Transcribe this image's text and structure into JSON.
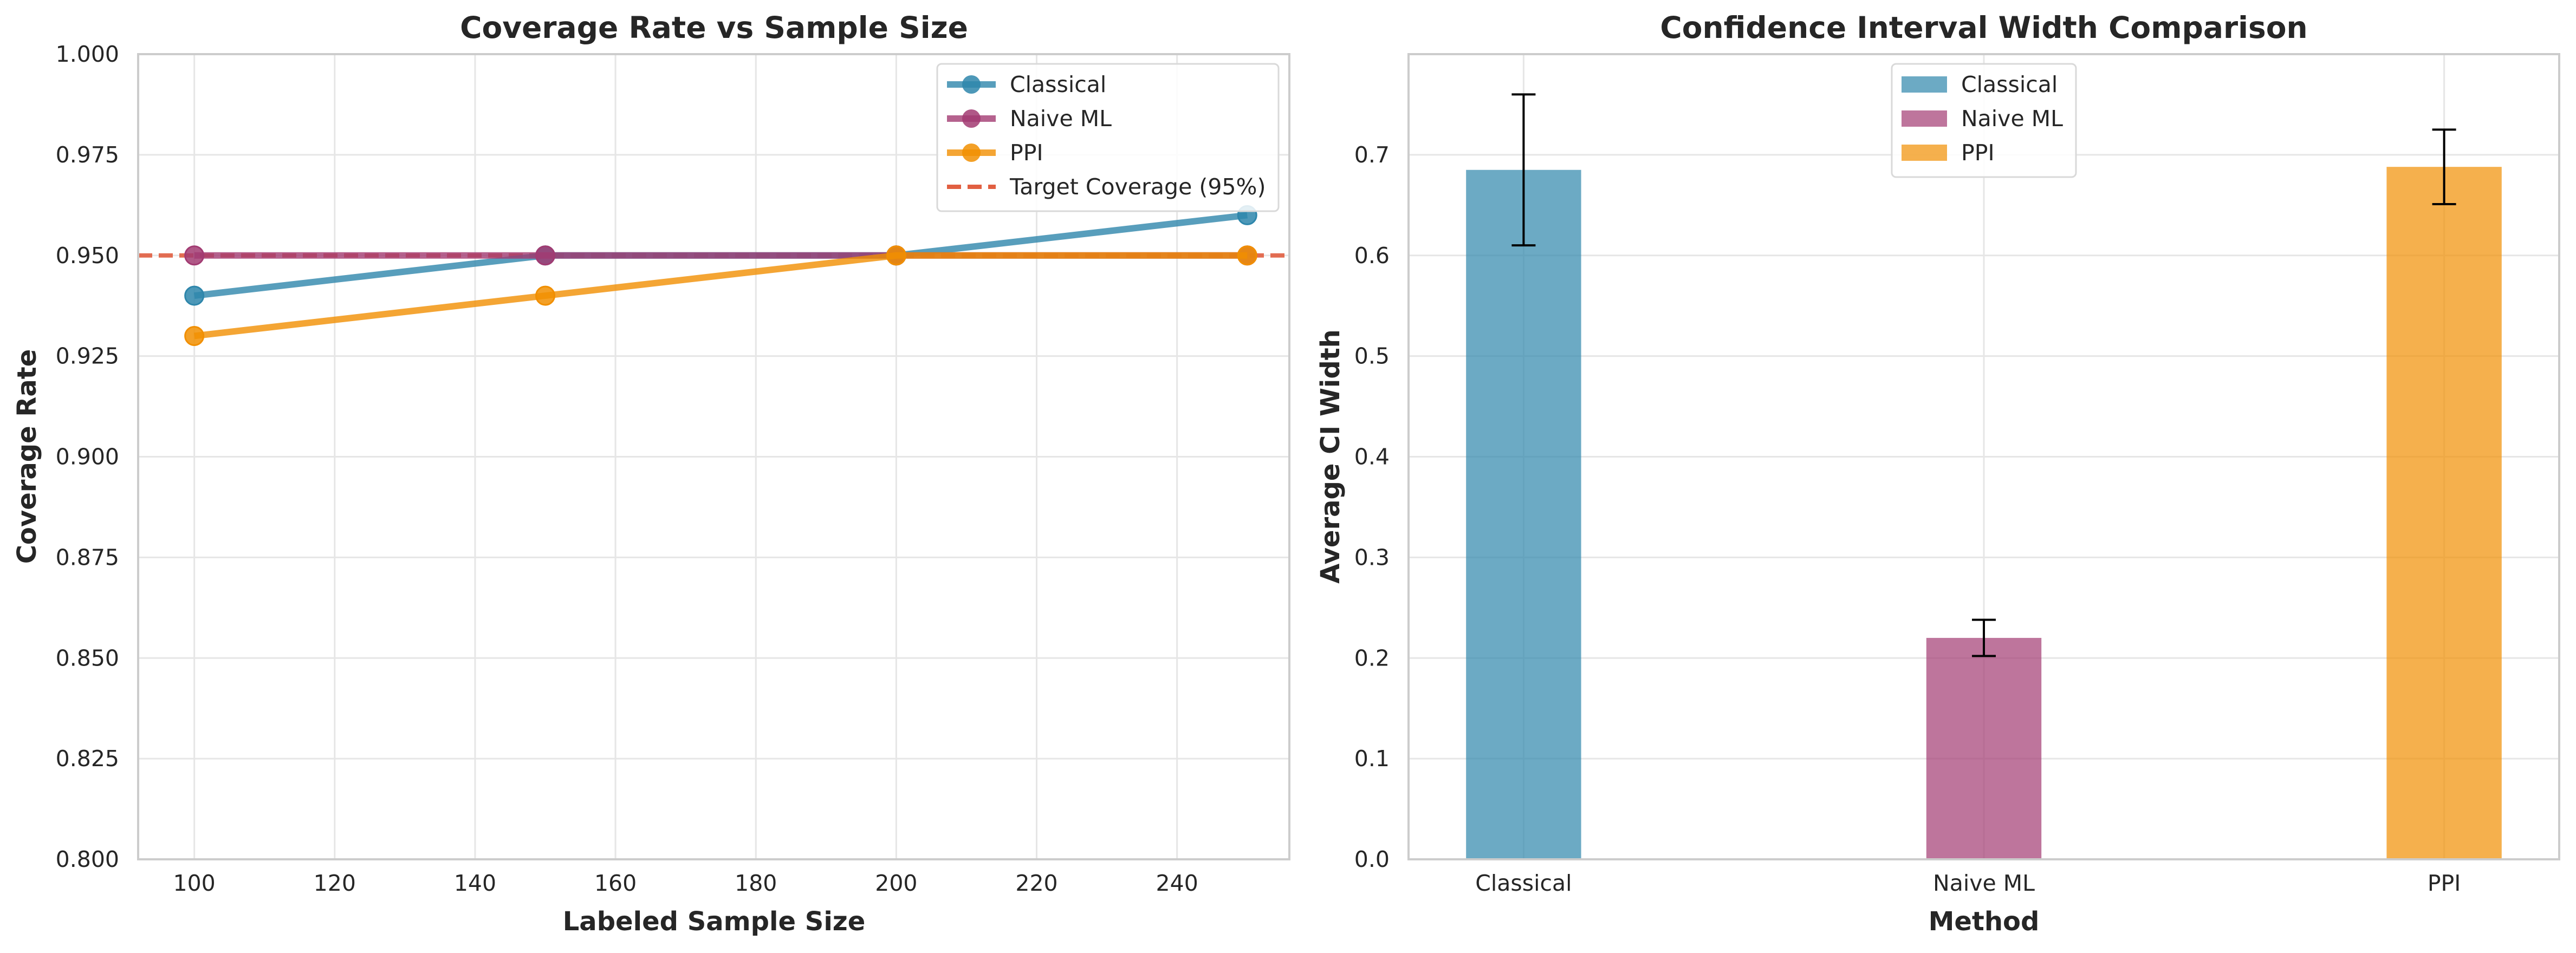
{
  "chart_data": [
    {
      "type": "line",
      "title": "Coverage Rate vs Sample Size",
      "xlabel": "Labeled Sample Size",
      "ylabel": "Coverage Rate",
      "xlim": [
        92,
        256
      ],
      "ylim": [
        0.8,
        1.0
      ],
      "xticks": [
        100,
        120,
        140,
        160,
        180,
        200,
        220,
        240
      ],
      "xtick_labels": [
        "100",
        "120",
        "140",
        "160",
        "180",
        "200",
        "220",
        "240"
      ],
      "yticks": [
        0.8,
        0.825,
        0.85,
        0.875,
        0.9,
        0.925,
        0.95,
        0.975,
        1.0
      ],
      "ytick_labels": [
        "0.800",
        "0.825",
        "0.850",
        "0.875",
        "0.900",
        "0.925",
        "0.950",
        "0.975",
        "1.000"
      ],
      "grid": true,
      "legend_position": "top-right",
      "x": [
        100,
        150,
        200,
        250
      ],
      "series": [
        {
          "name": "Classical",
          "values": [
            0.94,
            0.95,
            0.95,
            0.96
          ],
          "color": "#2E86AB"
        },
        {
          "name": "Naive ML",
          "values": [
            0.95,
            0.95,
            0.95,
            0.95
          ],
          "color": "#A23B72"
        },
        {
          "name": "PPI",
          "values": [
            0.93,
            0.94,
            0.95,
            0.95
          ],
          "color": "#F18F01"
        }
      ],
      "reference_line": {
        "name": "Target Coverage (95%)",
        "value": 0.95,
        "color": "#E15F41",
        "style": "dashed"
      }
    },
    {
      "type": "bar",
      "title": "Confidence Interval Width Comparison",
      "xlabel": "Method",
      "ylabel": "Average CI Width",
      "ylim": [
        0.0,
        0.8
      ],
      "yticks": [
        0.0,
        0.1,
        0.2,
        0.3,
        0.4,
        0.5,
        0.6,
        0.7
      ],
      "ytick_labels": [
        "0.0",
        "0.1",
        "0.2",
        "0.3",
        "0.4",
        "0.5",
        "0.6",
        "0.7"
      ],
      "grid": true,
      "legend_position": "top-center",
      "categories": [
        "Classical",
        "Naive ML",
        "PPI"
      ],
      "values": [
        0.685,
        0.22,
        0.688
      ],
      "errors": [
        0.075,
        0.018,
        0.037
      ],
      "series": [
        {
          "name": "Classical",
          "color": "#2E86AB"
        },
        {
          "name": "Naive ML",
          "color": "#A23B72"
        },
        {
          "name": "PPI",
          "color": "#F18F01"
        }
      ]
    }
  ]
}
